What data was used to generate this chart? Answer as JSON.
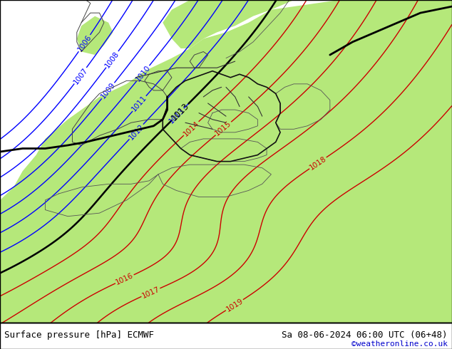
{
  "title_left": "Surface pressure [hPa] ECMWF",
  "title_right": "Sa 08-06-2024 06:00 UTC (06+48)",
  "watermark": "©weatheronline.co.uk",
  "land_color": "#b5e87a",
  "sea_color": "#d8d8d8",
  "fig_width": 6.34,
  "fig_height": 4.9,
  "dpi": 100,
  "bottom_bar_color": "#ffffff",
  "title_fontsize": 9.0,
  "watermark_color": "#0000cc",
  "watermark_fontsize": 8,
  "contour_blue_color": "#0000ff",
  "contour_red_color": "#cc0000",
  "contour_black_color": "#000000",
  "contour_blue_linewidth": 1.0,
  "contour_red_linewidth": 1.0,
  "contour_black_linewidth": 1.8,
  "label_fontsize": 7.5,
  "blue_levels": [
    1006,
    1007,
    1008,
    1009,
    1010,
    1011,
    1012,
    1013
  ],
  "red_levels": [
    1014,
    1015,
    1016,
    1017,
    1018,
    1019
  ],
  "black_levels": [
    1013
  ]
}
